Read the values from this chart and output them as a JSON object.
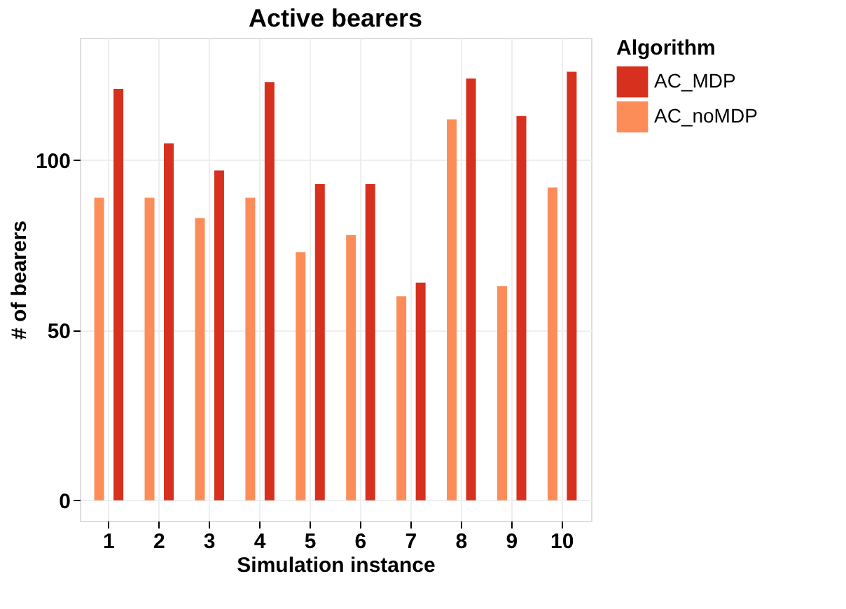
{
  "chart_data": {
    "type": "bar",
    "title": "Active bearers",
    "xlabel": "Simulation instance",
    "ylabel": "# of bearers",
    "legend_title": "Algorithm",
    "categories": [
      "1",
      "2",
      "3",
      "4",
      "5",
      "6",
      "7",
      "8",
      "9",
      "10"
    ],
    "series": [
      {
        "name": "AC_MDP",
        "color": "#d7301f",
        "values": [
          121,
          105,
          97,
          123,
          93,
          93,
          64,
          124,
          113,
          126
        ]
      },
      {
        "name": "AC_noMDP",
        "color": "#fc8d59",
        "values": [
          89,
          89,
          83,
          89,
          73,
          78,
          60,
          112,
          63,
          92
        ]
      }
    ],
    "ylim": [
      -6,
      136
    ],
    "yticks": [
      0,
      50,
      100
    ],
    "grid": true,
    "legend": "right"
  }
}
